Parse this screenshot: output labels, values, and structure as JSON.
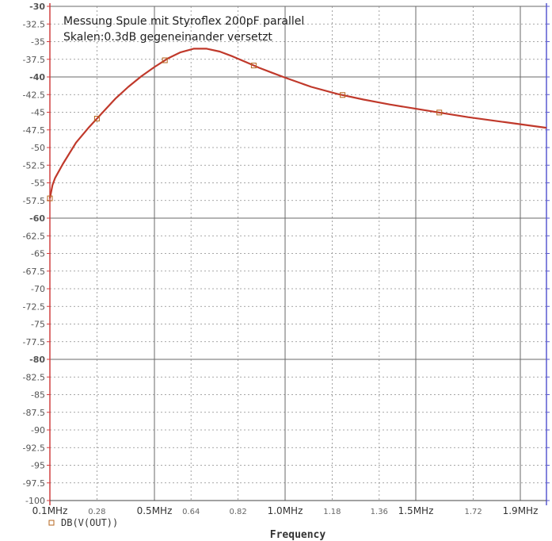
{
  "chart_data": {
    "type": "line",
    "annotation_lines": [
      "Messung Spule mit Styroflex 200pF parallel",
      "Skalen:0.3dB gegeneinander versetzt"
    ],
    "xlabel": "Frequency",
    "legend_label": "DB(V(OUT))",
    "xlim": [
      0.1,
      2.0
    ],
    "ylim": [
      -100,
      -30
    ],
    "y_ticks": [
      "-30",
      "-32.5",
      "-35",
      "-37.5",
      "-40",
      "-42.5",
      "-45",
      "-47.5",
      "-50",
      "-52.5",
      "-55",
      "-57.5",
      "-60",
      "-62.5",
      "-65",
      "-67.5",
      "-70",
      "-72.5",
      "-75",
      "-77.5",
      "-80",
      "-82.5",
      "-85",
      "-87.5",
      "-90",
      "-92.5",
      "-95",
      "-97.5",
      "-100"
    ],
    "x_ticks": [
      {
        "value": 0.1,
        "label": "0.1MHz"
      },
      {
        "value": 0.28,
        "label": "0.28"
      },
      {
        "value": 0.5,
        "label": "0.5MHz"
      },
      {
        "value": 0.64,
        "label": "0.64"
      },
      {
        "value": 0.82,
        "label": "0.82"
      },
      {
        "value": 1.0,
        "label": "1.0MHz"
      },
      {
        "value": 1.18,
        "label": "1.18"
      },
      {
        "value": 1.36,
        "label": "1.36"
      },
      {
        "value": 1.5,
        "label": "1.5MHz"
      },
      {
        "value": 1.72,
        "label": "1.72"
      },
      {
        "value": 1.9,
        "label": "1.9MHz"
      }
    ],
    "series": [
      {
        "color": "#c0392b",
        "x": [
          0.1,
          0.11,
          0.12,
          0.15,
          0.2,
          0.25,
          0.3,
          0.35,
          0.4,
          0.45,
          0.5,
          0.55,
          0.6,
          0.65,
          0.7,
          0.75,
          0.8,
          0.85,
          0.9,
          0.95,
          1.0,
          1.1,
          1.2,
          1.3,
          1.4,
          1.5,
          1.6,
          1.7,
          1.8,
          1.9,
          2.0
        ],
        "values": [
          -57.2,
          -55.3,
          -54.3,
          -52.3,
          -49.3,
          -47.1,
          -45.1,
          -43.1,
          -41.4,
          -39.9,
          -38.6,
          -37.4,
          -36.5,
          -36.0,
          -36.0,
          -36.4,
          -37.1,
          -37.9,
          -38.7,
          -39.4,
          -40.1,
          -41.4,
          -42.4,
          -43.2,
          -43.9,
          -44.5,
          -45.1,
          -45.7,
          -46.2,
          -46.7,
          -47.2
        ],
        "markers_x": [
          0.1,
          0.28,
          0.54,
          0.88,
          1.22,
          1.59
        ]
      }
    ],
    "grid": true
  },
  "colors": {
    "background": "#ffffff",
    "grid_dotted": "#8a8a8a",
    "grid_major": "#6a6a6a",
    "curve": "#c0392b",
    "left_axis": "#d04040",
    "right_axis": "#5a5ad0",
    "marker": "#b5651d"
  }
}
